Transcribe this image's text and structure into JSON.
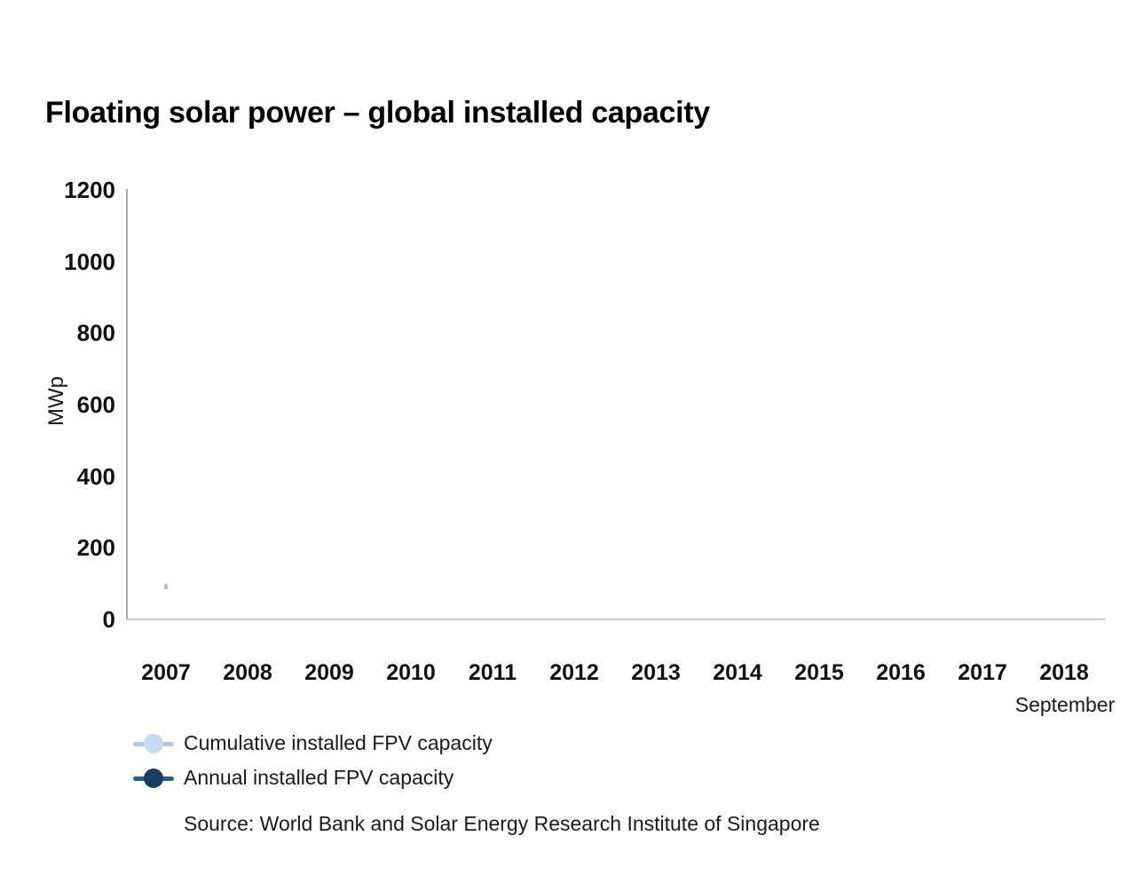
{
  "title": "Floating solar power – global installed capacity",
  "chart_data": {
    "type": "line",
    "title": "Floating solar power – global installed capacity",
    "xlabel": "",
    "ylabel": "MWp",
    "ylim": [
      0,
      1200
    ],
    "yticks": [
      0,
      200,
      400,
      600,
      800,
      1000,
      1200
    ],
    "categories": [
      "2007",
      "2008",
      "2009",
      "2010",
      "2011",
      "2012",
      "2013",
      "2014",
      "2015",
      "2016",
      "2017",
      "2018"
    ],
    "x_axis_note": "September",
    "grid": false,
    "legend_position": "bottom-left",
    "series": [
      {
        "name": "Cumulative installed FPV capacity",
        "line_color": "#A9CDE6",
        "marker_color": "#C3DCEF",
        "values": []
      },
      {
        "name": "Annual installed FPV capacity",
        "line_color": "#1F5F96",
        "marker_color": "#153E63",
        "values": []
      }
    ]
  },
  "axis": {
    "y_line_color": "#ABABAB",
    "x_line_color": "#CBCBCB"
  },
  "stray_mark": {
    "color": "#A9B2BE"
  },
  "source": "Source: World Bank and Solar Energy Research Institute of Singapore"
}
